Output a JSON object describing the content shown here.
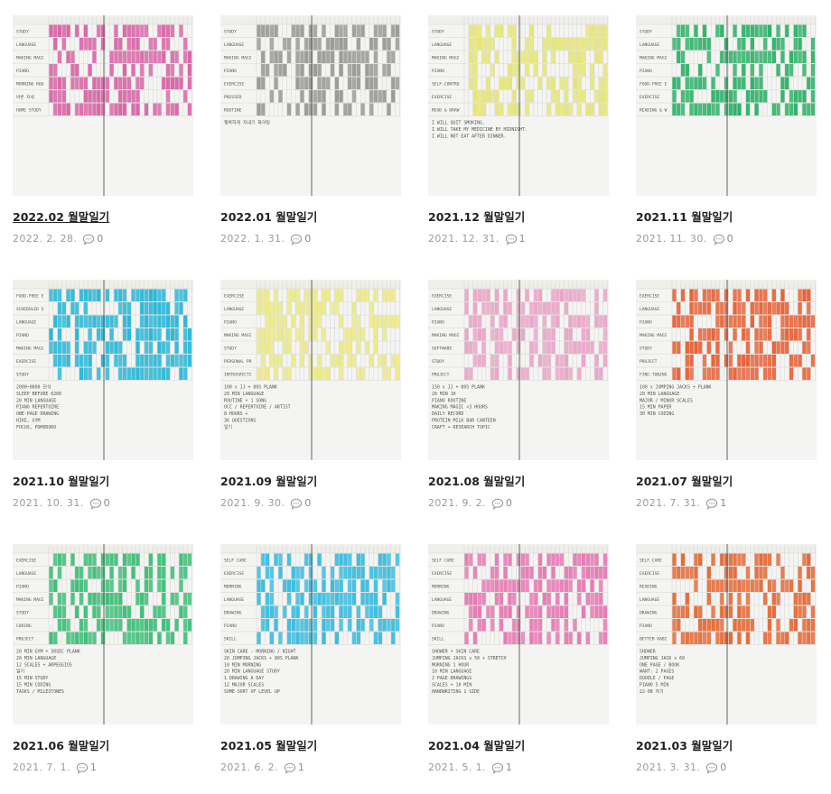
{
  "posts": [
    {
      "title": "2022.02 월말일기",
      "date": "2022. 2. 28.",
      "comments": "0",
      "color": "#d966a8",
      "rows": [
        "STUDY",
        "LANGUAGE",
        "MAKING MAGIC",
        "PIANO",
        "MORNING ROUTINE",
        "바른 자세",
        "HOME STUDY"
      ],
      "notes": []
    },
    {
      "title": "2022.01 월말일기",
      "date": "2022. 1. 31.",
      "comments": "0",
      "color": "#9a9a96",
      "rows": [
        "STUDY",
        "LANGUAGE",
        "MAKING MAGIC",
        "PIANO",
        "EXERCISE",
        "PRESSED",
        "ROUTINE"
      ],
      "notes": [
        "행복하게 지내기 화이팅"
      ]
    },
    {
      "title": "2021.12 월말일기",
      "date": "2021. 12. 31.",
      "comments": "1",
      "color": "#e6e67a",
      "rows": [
        "STUDY",
        "LANGUAGE",
        "MAKING MAGIC",
        "PIANO",
        "SELF-CONTROL",
        "EXERCISE",
        "READ & DRAW"
      ],
      "notes": [
        "I WILL QUIT SMOKING.",
        "I WILL TAKE MY MEDICINE BY MIDNIGHT.",
        "I WILL NOT EAT AFTER DINNER."
      ]
    },
    {
      "title": "2021.11 월말일기",
      "date": "2021. 11. 30.",
      "comments": "0",
      "color": "#2fb36a",
      "rows": [
        "STUDY",
        "LANGUAGE",
        "MAKING MAGIC",
        "PIANO",
        "FOOD-FREE EVENING",
        "EXERCISE",
        "READING & WRITING"
      ],
      "notes": []
    },
    {
      "title": "2021.10 월말일기",
      "date": "2021. 10. 31.",
      "comments": "0",
      "color": "#2ab8d8",
      "rows": [
        "FOOD-FREE EVENING",
        "SCHEDULED SLEEP",
        "LANGUAGE",
        "PIANO",
        "MAKING MAGIC",
        "EXERCISE",
        "STUDY"
      ],
      "notes": [
        "2000~0800 단식",
        "SLEEP BEFORE 0200",
        "20 MIN LANGUAGE",
        "PIANO REPERTOIRE",
        "ONE-PAGE DRAWING",
        "HIKE, GYM",
        "FOCUS, POMODORO"
      ]
    },
    {
      "title": "2021.09 월말일기",
      "date": "2021. 9. 30.",
      "comments": "0",
      "color": "#ecea88",
      "rows": [
        "EXERCISE",
        "LANGUAGE",
        "PIANO",
        "MAKING MAGIC",
        "STUDY",
        "PERSONAL PROJECT",
        "INTROSPECTION"
      ],
      "notes": [
        "100 x JJ + 80S PLANK",
        "20 MIN LANGUAGE",
        "ROUTINE + 1 SONG",
        "OCC / REPERTOIRE / ARTIST",
        "8 HOURS +",
        "36 QUESTIONS",
        "일기"
      ]
    },
    {
      "title": "2021.08 월말일기",
      "date": "2021. 9. 2.",
      "comments": "0",
      "color": "#eaa6c8",
      "rows": [
        "EXERCISE",
        "LANGUAGE",
        "PIANO",
        "MAKING MAGIC",
        "SOFTWARE",
        "STUDY",
        "PROJECT"
      ],
      "notes": [
        "150 x JJ + 80S PLANK",
        "20 MIN 1H",
        "PIANO ROUTINE",
        "MAKING MAGIC <3 HOURS",
        "DAILY RECORD",
        "PROTEIN MILK BAR CANTEEN",
        "CRAFT + RESEARCH TOPIC"
      ]
    },
    {
      "title": "2021.07 월말일기",
      "date": "2021. 7. 31.",
      "comments": "1",
      "color": "#e8643a",
      "rows": [
        "EXERCISE",
        "LANGUAGE",
        "PIANO",
        "MAKING MAGIC",
        "STUDY",
        "PROJECT",
        "FINE-TUNING"
      ],
      "notes": [
        "100 x JUMPING JACKS + PLANK",
        "20 MIN LANGUAGE",
        "MAJOR / MINOR SCALES",
        "15 MIN PAPER",
        "30 MIN CODING"
      ]
    },
    {
      "title": "2021.06 월말일기",
      "date": "2021. 7. 1.",
      "comments": "1",
      "color": "#3dbf78",
      "rows": [
        "EXERCISE",
        "LANGUAGE",
        "PIANO",
        "MAKING MAGIC",
        "STUDY",
        "CODING",
        "PROJECT"
      ],
      "notes": [
        "20 MIN GYM + 30SEC PLANK",
        "20 MIN LANGUAGE",
        "12 SCALES + ARPEGGIOS",
        "일기",
        "15 MIN STUDY",
        "15 MIN CODING",
        "TASKS / MILESTONES"
      ]
    },
    {
      "title": "2021.05 월말일기",
      "date": "2021. 6. 2.",
      "comments": "1",
      "color": "#3bbde0",
      "rows": [
        "SELF CARE",
        "EXERCISE",
        "MORNING",
        "LANGUAGE",
        "DRAWING",
        "PIANO",
        "SKILL"
      ],
      "notes": [
        "SKIN CARE - MORNING / NIGHT",
        "20 JUMPING JACKS + 80S PLANK",
        "10 MIN MORNING",
        "20 MIN LANGUAGE STUDY",
        "1 DRAWING A DAY",
        "12 MAJOR SCALES",
        "SOME SORT OF LEVEL UP"
      ]
    },
    {
      "title": "2021.04 월말일기",
      "date": "2021. 5. 1.",
      "comments": "1",
      "color": "#e77ab4",
      "rows": [
        "SELF CARE",
        "EXERCISE",
        "MORNING",
        "LANGUAGE",
        "DRAWING",
        "PIANO",
        "SKILL"
      ],
      "notes": [
        "SHOWER + SKIN CARE",
        "JUMPING JACKS x 50 + STRETCH",
        "MORNING 1 HOUR",
        "10 MIN LANGUAGE",
        "2 PAGE DRAWINGS",
        "SCALES + 10 MIN",
        "HANDWRITING 1 SIDE"
      ]
    },
    {
      "title": "2021.03 월말일기",
      "date": "2021. 3. 31.",
      "comments": "0",
      "color": "#e66a36",
      "rows": [
        "SELF CARE",
        "EXERCISE",
        "READING",
        "LANGUAGE",
        "DRAWING",
        "PIANO",
        "BETTER HABITS"
      ],
      "notes": [
        "SHOWER",
        "JUMPING JACK x 60",
        "ONE PAGE / BOOK",
        "WANT: 2 PAGES",
        "DOODLE / PAGE",
        "PIANO 5 MIN",
        "22-08 자기"
      ]
    }
  ]
}
